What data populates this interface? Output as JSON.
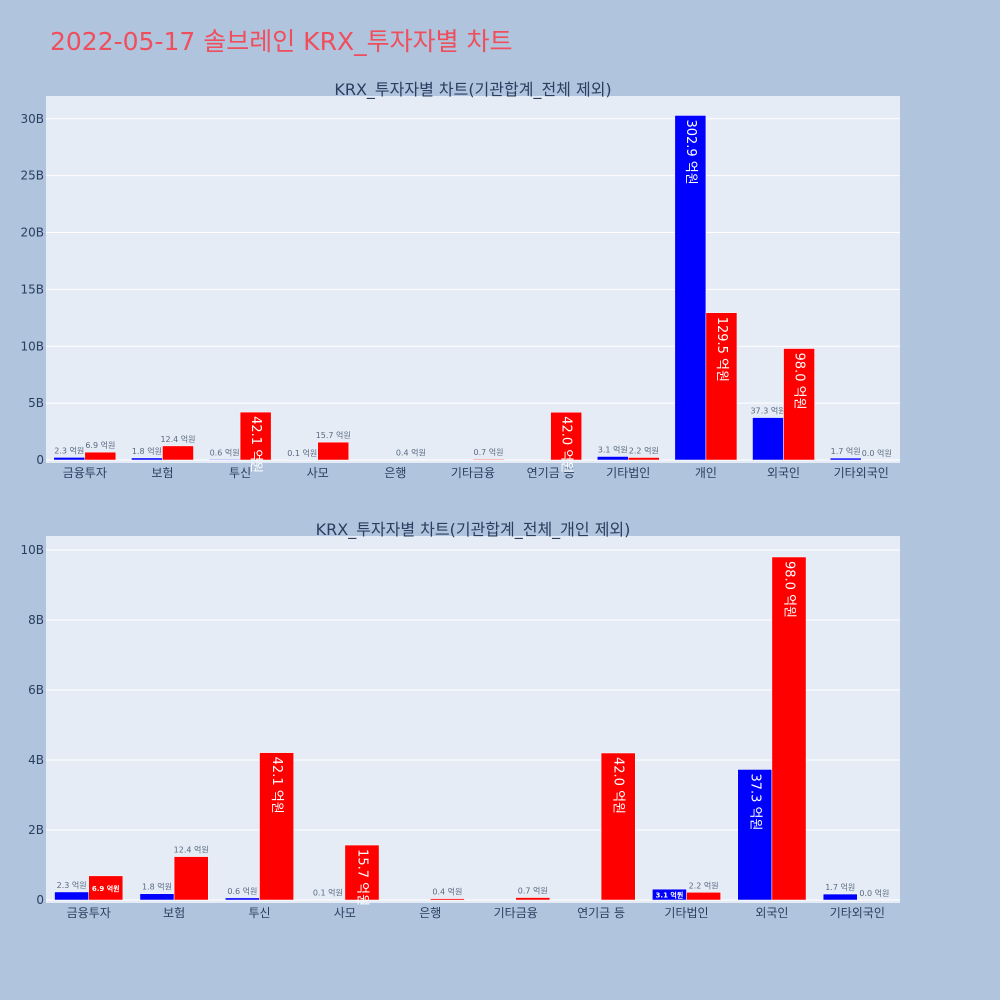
{
  "page": {
    "title": "2022-05-17 솔브레인 KRX_투자자별 차트"
  },
  "chart_data": [
    {
      "type": "bar",
      "title": "KRX_투자자별 차트(기관합계_전체 제외)",
      "categories": [
        "금융투자",
        "보험",
        "투신",
        "사모",
        "은행",
        "기타금융",
        "연기금 등",
        "기타법인",
        "개인",
        "외국인",
        "기타외국인"
      ],
      "series": [
        {
          "color": "#0000ff",
          "values": [
            2.3,
            1.8,
            0.6,
            0.1,
            0.0,
            0.0,
            0.0,
            3.1,
            302.9,
            37.3,
            1.7
          ],
          "labels": [
            "2.3 억원",
            "1.8 억원",
            "0.6 억원",
            "0.1 억원",
            "",
            "",
            "",
            "3.1 억원",
            "302.9 억원",
            "37.3 억원",
            "1.7 억원"
          ]
        },
        {
          "color": "#ff0000",
          "values": [
            6.9,
            12.4,
            42.1,
            15.7,
            0.4,
            0.7,
            42.0,
            2.2,
            129.5,
            98.0,
            0.0
          ],
          "labels": [
            "6.9 억원",
            "12.4 억원",
            "42.1 억원",
            "15.7 억원",
            "0.4 억원",
            "0.7 억원",
            "42.0 억원",
            "2.2 억원",
            "129.5 억원",
            "98.0 억원",
            "0.0 억원"
          ]
        }
      ],
      "value_unit": "억원",
      "ylim": [
        0,
        320
      ],
      "yticks": [
        0,
        50,
        100,
        150,
        200,
        250,
        300
      ],
      "ytick_labels": [
        "0",
        "5B",
        "10B",
        "15B",
        "20B",
        "25B",
        "30B"
      ],
      "plot_bg": "#e5ecf6",
      "grid": true
    },
    {
      "type": "bar",
      "title": "KRX_투자자별 차트(기관합계_전체_개인 제외)",
      "categories": [
        "금융투자",
        "보험",
        "투신",
        "사모",
        "은행",
        "기타금융",
        "연기금 등",
        "기타법인",
        "외국인",
        "기타외국인"
      ],
      "series": [
        {
          "color": "#0000ff",
          "values": [
            2.3,
            1.8,
            0.6,
            0.1,
            0.0,
            0.0,
            0.0,
            3.1,
            37.3,
            1.7
          ],
          "labels": [
            "2.3 억원",
            "1.8 억원",
            "0.6 억원",
            "0.1 억원",
            "",
            "",
            "",
            "3.1 억원",
            "37.3 억원",
            "1.7 억원"
          ]
        },
        {
          "color": "#ff0000",
          "values": [
            6.9,
            12.4,
            42.1,
            15.7,
            0.4,
            0.7,
            42.0,
            2.2,
            98.0,
            0.0
          ],
          "labels": [
            "6.9 억원",
            "12.4 억원",
            "42.1 억원",
            "15.7 억원",
            "0.4 억원",
            "0.7 억원",
            "42.0 억원",
            "2.2 억원",
            "98.0 억원",
            "0.0 억원"
          ]
        }
      ],
      "value_unit": "억원",
      "ylim": [
        0,
        104
      ],
      "yticks": [
        0,
        20,
        40,
        60,
        80,
        100
      ],
      "ytick_labels": [
        "0",
        "2B",
        "4B",
        "6B",
        "8B",
        "10B"
      ],
      "plot_bg": "#e5ecf6",
      "grid": true
    }
  ]
}
